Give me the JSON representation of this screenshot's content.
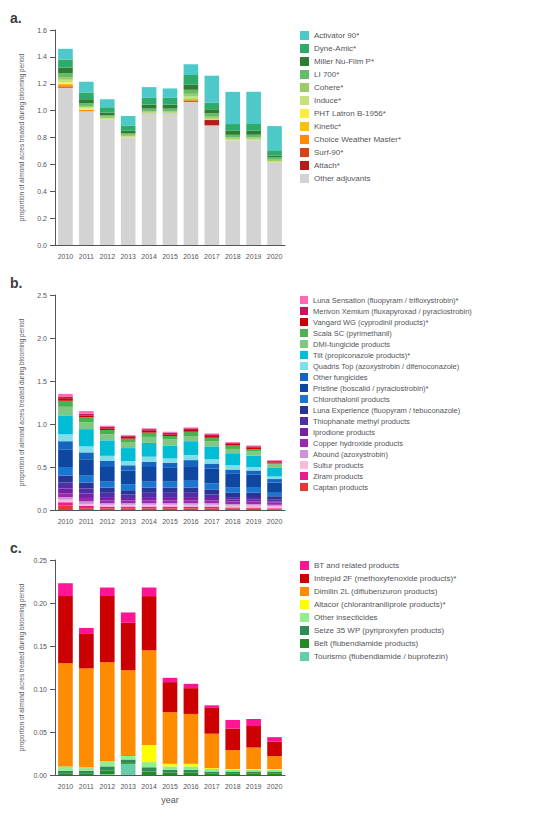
{
  "chart_data": [
    {
      "type": "bar",
      "title": "a.",
      "stacked": true,
      "grid": false,
      "ylabel": "proportion of almond acres treated during blooming period",
      "categories": [
        "2010",
        "2011",
        "2012",
        "2013",
        "2014",
        "2015",
        "2016",
        "2017",
        "2018",
        "2019",
        "2020"
      ],
      "ylim": [
        0.0,
        1.6
      ],
      "yticks": [
        {
          "value": 0.0,
          "label": "0.0"
        },
        0.2,
        0.4,
        0.6,
        0.8,
        {
          "value": 1.0,
          "label": "1.0"
        },
        1.2,
        1.4,
        1.6
      ],
      "series": [
        {
          "name": "Other adjuvants",
          "color": "#D3D3D3",
          "values": [
            1.17,
            0.995,
            0.935,
            0.8,
            0.975,
            0.975,
            1.065,
            0.89,
            0.78,
            0.78,
            0.615
          ]
        },
        {
          "name": "Attach*",
          "color": "#B71C1C",
          "values": [
            0.0,
            0.0,
            0.0,
            0.0,
            0.0,
            0.0,
            0.0,
            0.04,
            0.0,
            0.0,
            0.0
          ]
        },
        {
          "name": "Surf-90*",
          "color": "#D84315",
          "values": [
            0.01,
            0.0,
            0.0,
            0.0,
            0.0,
            0.0,
            0.01,
            0.0,
            0.0,
            0.0,
            0.0
          ]
        },
        {
          "name": "Choice Weather Master*",
          "color": "#FF8C00",
          "values": [
            0.01,
            0.01,
            0.0,
            0.0,
            0.0,
            0.0,
            0.01,
            0.0,
            0.0,
            0.0,
            0.0
          ]
        },
        {
          "name": "Kinetic*",
          "color": "#FFC107",
          "values": [
            0.01,
            0.0,
            0.0,
            0.0,
            0.0,
            0.0,
            0.0,
            0.0,
            0.0,
            0.0,
            0.0
          ]
        },
        {
          "name": "PHT Latron B-1956*",
          "color": "#FFEB3B",
          "values": [
            0.01,
            0.01,
            0.0,
            0.0,
            0.0,
            0.0,
            0.0,
            0.0,
            0.0,
            0.0,
            0.0
          ]
        },
        {
          "name": "Induce*",
          "color": "#C5E17A",
          "values": [
            0.02,
            0.01,
            0.01,
            0.01,
            0.01,
            0.01,
            0.02,
            0.01,
            0.01,
            0.01,
            0.01
          ]
        },
        {
          "name": "Cohere*",
          "color": "#9CCC65",
          "values": [
            0.02,
            0.01,
            0.01,
            0.01,
            0.01,
            0.01,
            0.02,
            0.02,
            0.01,
            0.01,
            0.01
          ]
        },
        {
          "name": "LI 700*",
          "color": "#66BB6A",
          "values": [
            0.03,
            0.02,
            0.01,
            0.01,
            0.02,
            0.02,
            0.03,
            0.02,
            0.02,
            0.02,
            0.02
          ]
        },
        {
          "name": "Miller Nu-Film P*",
          "color": "#2E7D32",
          "values": [
            0.04,
            0.03,
            0.02,
            0.02,
            0.03,
            0.03,
            0.04,
            0.03,
            0.03,
            0.03,
            0.01
          ]
        },
        {
          "name": "Dyne-Amic*",
          "color": "#2EAA6A",
          "values": [
            0.06,
            0.05,
            0.04,
            0.04,
            0.05,
            0.05,
            0.07,
            0.05,
            0.05,
            0.05,
            0.04
          ]
        },
        {
          "name": "Activator 90*",
          "color": "#4EC9C9",
          "values": [
            0.08,
            0.08,
            0.06,
            0.07,
            0.08,
            0.07,
            0.08,
            0.2,
            0.24,
            0.24,
            0.18
          ]
        }
      ]
    },
    {
      "type": "bar",
      "title": "b.",
      "stacked": true,
      "grid": false,
      "ylabel": "proportion of almond acres treated during blooming period",
      "categories": [
        "2010",
        "2011",
        "2012",
        "2013",
        "2014",
        "2015",
        "2016",
        "2017",
        "2018",
        "2019",
        "2020"
      ],
      "ylim": [
        0.0,
        2.5
      ],
      "yticks": [
        {
          "value": 0.0,
          "label": "0.0"
        },
        0.5,
        {
          "value": 1.0,
          "label": "1.0"
        },
        1.5,
        {
          "value": 2.0,
          "label": "2.0"
        },
        2.5
      ],
      "series": [
        {
          "name": "Captan products",
          "color": "#E53935",
          "values": [
            0.05,
            0.02,
            0.02,
            0.02,
            0.02,
            0.02,
            0.02,
            0.02,
            0.02,
            0.02,
            0.01
          ]
        },
        {
          "name": "Ziram products",
          "color": "#E91E8C",
          "values": [
            0.04,
            0.03,
            0.02,
            0.02,
            0.02,
            0.02,
            0.02,
            0.02,
            0.01,
            0.01,
            0.01
          ]
        },
        {
          "name": "Sultur products",
          "color": "#F8BBD9",
          "values": [
            0.03,
            0.02,
            0.02,
            0.02,
            0.02,
            0.02,
            0.02,
            0.02,
            0.02,
            0.02,
            0.02
          ]
        },
        {
          "name": "Abound (azoxystrobin)",
          "color": "#CE93D8",
          "values": [
            0.03,
            0.03,
            0.02,
            0.02,
            0.02,
            0.02,
            0.02,
            0.02,
            0.02,
            0.02,
            0.02
          ]
        },
        {
          "name": "Copper hydroxide products",
          "color": "#9C27B0",
          "values": [
            0.04,
            0.04,
            0.03,
            0.03,
            0.03,
            0.03,
            0.03,
            0.03,
            0.03,
            0.03,
            0.03
          ]
        },
        {
          "name": "Iprodione products",
          "color": "#7B1FA2",
          "values": [
            0.06,
            0.05,
            0.04,
            0.03,
            0.04,
            0.04,
            0.04,
            0.03,
            0.02,
            0.02,
            0.01
          ]
        },
        {
          "name": "Thiophanate methyl products",
          "color": "#512DA8",
          "values": [
            0.07,
            0.06,
            0.05,
            0.04,
            0.05,
            0.05,
            0.05,
            0.04,
            0.03,
            0.03,
            0.02
          ]
        },
        {
          "name": "Luna Experience (fluopyram / tebuconazole)",
          "color": "#283593",
          "values": [
            0.08,
            0.07,
            0.06,
            0.05,
            0.06,
            0.06,
            0.06,
            0.06,
            0.05,
            0.05,
            0.04
          ]
        },
        {
          "name": "Chlorothalonil products",
          "color": "#1976D2",
          "values": [
            0.1,
            0.08,
            0.07,
            0.07,
            0.07,
            0.07,
            0.08,
            0.07,
            0.06,
            0.06,
            0.04
          ]
        },
        {
          "name": "Pristine (boscalid / pyraclostrobin)*",
          "color": "#0D47A1",
          "values": [
            0.2,
            0.19,
            0.17,
            0.16,
            0.17,
            0.16,
            0.17,
            0.17,
            0.16,
            0.15,
            0.12
          ]
        },
        {
          "name": "Other fungicides",
          "color": "#1565C0",
          "values": [
            0.1,
            0.08,
            0.07,
            0.06,
            0.06,
            0.06,
            0.07,
            0.06,
            0.05,
            0.05,
            0.04
          ]
        },
        {
          "name": "Quadris Top (azoxystrobin / difenoconazole)",
          "color": "#80DEEA",
          "values": [
            0.08,
            0.07,
            0.06,
            0.05,
            0.06,
            0.05,
            0.06,
            0.05,
            0.05,
            0.04,
            0.03
          ]
        },
        {
          "name": "Tilt (propiconazole products)*",
          "color": "#00BCD4",
          "values": [
            0.22,
            0.2,
            0.18,
            0.15,
            0.16,
            0.15,
            0.16,
            0.15,
            0.14,
            0.13,
            0.1
          ]
        },
        {
          "name": "DMI-fungicide products",
          "color": "#81C784",
          "values": [
            0.1,
            0.08,
            0.07,
            0.07,
            0.07,
            0.07,
            0.06,
            0.06,
            0.05,
            0.05,
            0.04
          ]
        },
        {
          "name": "Scala SC (pyrimethanil)",
          "color": "#4CAF50",
          "values": [
            0.07,
            0.06,
            0.05,
            0.04,
            0.05,
            0.04,
            0.05,
            0.04,
            0.04,
            0.03,
            0.02
          ]
        },
        {
          "name": "Vangard WG (cyprodinil products)*",
          "color": "#CC0000",
          "values": [
            0.03,
            0.02,
            0.02,
            0.02,
            0.02,
            0.02,
            0.02,
            0.02,
            0.02,
            0.02,
            0.01
          ]
        },
        {
          "name": "Merivon Xemium (fluxapyroxad / pyraclostrobin)",
          "color": "#C2185B",
          "values": [
            0.02,
            0.02,
            0.02,
            0.01,
            0.02,
            0.02,
            0.02,
            0.02,
            0.01,
            0.01,
            0.01
          ]
        },
        {
          "name": "Luna Sensation (fluopyram / trifloxystrobin)*",
          "color": "#FF69B4",
          "values": [
            0.03,
            0.03,
            0.01,
            0.01,
            0.01,
            0.01,
            0.01,
            0.01,
            0.01,
            0.01,
            0.01
          ]
        }
      ]
    },
    {
      "type": "bar",
      "title": "c.",
      "stacked": true,
      "grid": false,
      "ylabel": "proportion of almond acres treated during blooming period",
      "xlabel": "year",
      "categories": [
        "2010",
        "2011",
        "2012",
        "2013",
        "2014",
        "2015",
        "2016",
        "2017",
        "2018",
        "2019",
        "2020"
      ],
      "ylim": [
        0.0,
        0.25
      ],
      "yticks": [
        {
          "value": 0.0,
          "label": "0.00"
        },
        0.05,
        {
          "value": 0.1,
          "label": "0.10"
        },
        0.15,
        {
          "value": 0.2,
          "label": "0.20"
        },
        0.25
      ],
      "series": [
        {
          "name": "Tourismo (flubendiamide / buprofezin)",
          "color": "#66CDAA",
          "values": [
            0.0,
            0.0,
            0.001,
            0.013,
            0.0,
            0.0,
            0.0,
            0.0,
            0.0,
            0.0,
            0.0
          ]
        },
        {
          "name": "Belt (flubendiamide products)",
          "color": "#228B22",
          "values": [
            0.002,
            0.002,
            0.004,
            0.002,
            0.004,
            0.003,
            0.003,
            0.002,
            0.002,
            0.002,
            0.002
          ]
        },
        {
          "name": "Seize 35 WP (pyriproxyfen products)",
          "color": "#2E8B57",
          "values": [
            0.003,
            0.003,
            0.005,
            0.003,
            0.005,
            0.003,
            0.003,
            0.002,
            0.002,
            0.002,
            0.002
          ]
        },
        {
          "name": "Other insecticides",
          "color": "#90EE90",
          "values": [
            0.005,
            0.004,
            0.006,
            0.004,
            0.006,
            0.004,
            0.004,
            0.003,
            0.002,
            0.002,
            0.002
          ]
        },
        {
          "name": "Altacor (chlorantraniliprole products)*",
          "color": "#FFFF00",
          "values": [
            0.0,
            0.0,
            0.0,
            0.0,
            0.02,
            0.003,
            0.003,
            0.001,
            0.001,
            0.001,
            0.001
          ]
        },
        {
          "name": "Dimilin 2L (diflubenzuron products)",
          "color": "#FF8C00",
          "values": [
            0.12,
            0.115,
            0.115,
            0.1,
            0.11,
            0.06,
            0.058,
            0.04,
            0.022,
            0.025,
            0.015
          ]
        },
        {
          "name": "Intrepid 2F (methoxyfenoxide products)*",
          "color": "#CC0000",
          "values": [
            0.078,
            0.04,
            0.077,
            0.055,
            0.063,
            0.035,
            0.03,
            0.03,
            0.025,
            0.025,
            0.017
          ]
        },
        {
          "name": "BT and related products",
          "color": "#FF1493",
          "values": [
            0.015,
            0.007,
            0.01,
            0.012,
            0.01,
            0.005,
            0.005,
            0.003,
            0.01,
            0.008,
            0.005
          ]
        }
      ]
    }
  ]
}
